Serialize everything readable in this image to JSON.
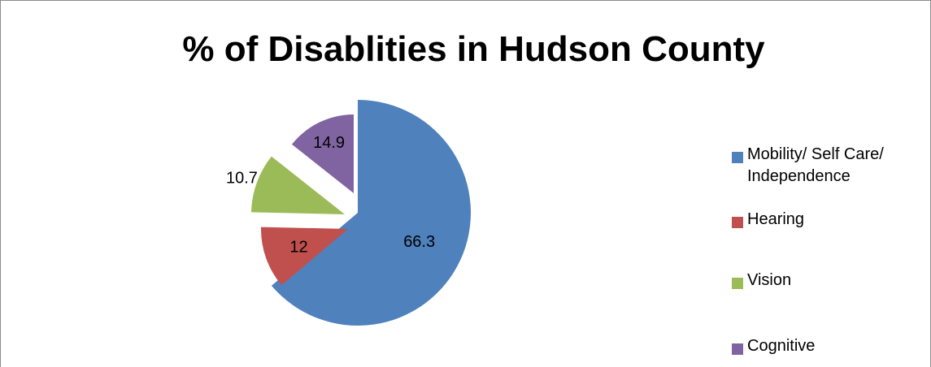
{
  "chart_data": {
    "type": "pie",
    "title": "% of Disablities in Hudson County",
    "categories": [
      "Mobility/ Self Care/ Independence",
      "Hearing",
      "Vision",
      "Cognitive"
    ],
    "values": [
      66.3,
      12,
      10.7,
      14.9
    ],
    "value_labels": [
      "66.3",
      "12",
      "10.7",
      "14.9"
    ],
    "colors": [
      "#4f81bd",
      "#c0504d",
      "#9bbb59",
      "#8064a2"
    ],
    "exploded": true,
    "legend": {
      "position": "right",
      "entries": [
        "Mobility/ Self Care/\nIndependence",
        "Hearing",
        "Vision",
        "Cognitive"
      ]
    }
  }
}
